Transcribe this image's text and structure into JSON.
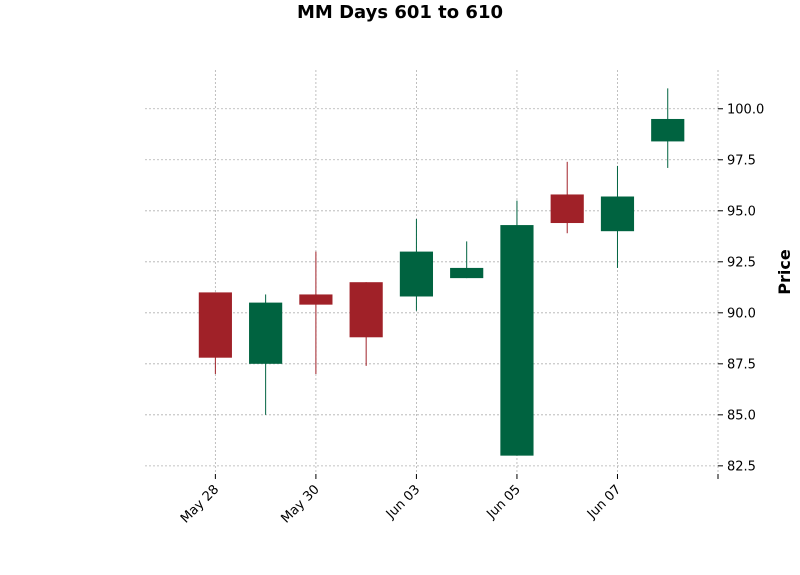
{
  "chart_data": {
    "type": "candlestick",
    "title": "MM Days 601 to 610",
    "ylabel": "Price",
    "xlabel": "",
    "ylim": [
      82.1,
      101.9
    ],
    "yticks": [
      82.5,
      85.0,
      87.5,
      90.0,
      92.5,
      95.0,
      97.5,
      100.0
    ],
    "ytick_labels": [
      "82.5",
      "85.0",
      "87.5",
      "90.0",
      "92.5",
      "95.0",
      "97.5",
      "100.0"
    ],
    "xlim": [
      -1.4,
      10.0
    ],
    "xticks": [
      0,
      2,
      4,
      6,
      8,
      10
    ],
    "xtick_labels": [
      "May 28",
      "May 30",
      "Jun 03",
      "Jun 05",
      "Jun 07",
      ""
    ],
    "grid": true,
    "up_color": "#006340",
    "down_color": "#a02128",
    "candles": [
      {
        "open": 91.0,
        "high": 91.0,
        "low": 87.0,
        "close": 87.8
      },
      {
        "open": 87.5,
        "high": 90.9,
        "low": 85.0,
        "close": 90.5
      },
      {
        "open": 90.9,
        "high": 93.0,
        "low": 87.0,
        "close": 90.4
      },
      {
        "open": 91.5,
        "high": 91.5,
        "low": 87.4,
        "close": 88.8
      },
      {
        "open": 90.8,
        "high": 94.6,
        "low": 90.1,
        "close": 93.0
      },
      {
        "open": 91.7,
        "high": 93.5,
        "low": 91.7,
        "close": 92.2
      },
      {
        "open": 83.0,
        "high": 95.5,
        "low": 83.0,
        "close": 94.3
      },
      {
        "open": 95.8,
        "high": 97.4,
        "low": 93.9,
        "close": 94.4
      },
      {
        "open": 94.0,
        "high": 97.2,
        "low": 92.2,
        "close": 95.7
      },
      {
        "open": 98.4,
        "high": 101.0,
        "low": 97.1,
        "close": 99.5
      }
    ]
  }
}
